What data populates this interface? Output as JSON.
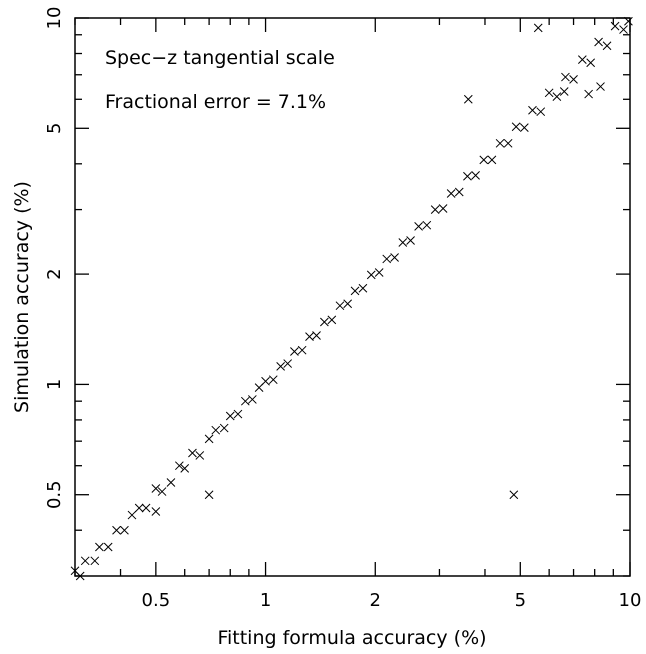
{
  "chart_data": {
    "type": "scatter",
    "xlabel": "Fitting formula accuracy (%)",
    "ylabel": "Simulation accuracy (%)",
    "xscale": "log",
    "yscale": "log",
    "xlim": [
      0.3,
      10
    ],
    "ylim": [
      0.3,
      10
    ],
    "xticks": [
      {
        "value": 0.5,
        "label": "0.5"
      },
      {
        "value": 1,
        "label": "1"
      },
      {
        "value": 2,
        "label": "2"
      },
      {
        "value": 5,
        "label": "5"
      },
      {
        "value": 10,
        "label": "10"
      }
    ],
    "yticks": [
      {
        "value": 0.5,
        "label": "0.5"
      },
      {
        "value": 1,
        "label": "1"
      },
      {
        "value": 2,
        "label": "2"
      },
      {
        "value": 5,
        "label": "5"
      },
      {
        "value": 10,
        "label": "10"
      }
    ],
    "annotations": [
      "Spec−z tangential scale",
      "Fractional error = 7.1%"
    ],
    "marker": "x",
    "marker_color": "#000000",
    "grid": false,
    "trend": {
      "relation": "y ≈ x",
      "fractional_scatter": 0.071
    },
    "points": [
      [
        0.3,
        0.31
      ],
      [
        0.31,
        0.3
      ],
      [
        0.32,
        0.33
      ],
      [
        0.34,
        0.33
      ],
      [
        0.35,
        0.36
      ],
      [
        0.37,
        0.36
      ],
      [
        0.39,
        0.4
      ],
      [
        0.41,
        0.4
      ],
      [
        0.43,
        0.44
      ],
      [
        0.45,
        0.46
      ],
      [
        0.47,
        0.46
      ],
      [
        0.5,
        0.52
      ],
      [
        0.52,
        0.51
      ],
      [
        0.55,
        0.54
      ],
      [
        0.58,
        0.6
      ],
      [
        0.6,
        0.59
      ],
      [
        0.63,
        0.65
      ],
      [
        0.66,
        0.64
      ],
      [
        0.7,
        0.71
      ],
      [
        0.73,
        0.75
      ],
      [
        0.77,
        0.76
      ],
      [
        0.8,
        0.82
      ],
      [
        0.84,
        0.83
      ],
      [
        0.88,
        0.9
      ],
      [
        0.92,
        0.91
      ],
      [
        0.96,
        0.98
      ],
      [
        1.0,
        1.02
      ],
      [
        1.05,
        1.03
      ],
      [
        1.1,
        1.12
      ],
      [
        1.15,
        1.14
      ],
      [
        1.2,
        1.23
      ],
      [
        1.26,
        1.24
      ],
      [
        1.32,
        1.35
      ],
      [
        1.38,
        1.36
      ],
      [
        1.45,
        1.48
      ],
      [
        1.52,
        1.5
      ],
      [
        1.6,
        1.64
      ],
      [
        1.68,
        1.66
      ],
      [
        1.76,
        1.8
      ],
      [
        1.85,
        1.83
      ],
      [
        1.95,
        1.99
      ],
      [
        2.05,
        2.02
      ],
      [
        2.15,
        2.2
      ],
      [
        2.26,
        2.22
      ],
      [
        2.38,
        2.44
      ],
      [
        2.5,
        2.47
      ],
      [
        2.63,
        2.7
      ],
      [
        2.77,
        2.72
      ],
      [
        2.92,
        3.0
      ],
      [
        3.07,
        3.02
      ],
      [
        3.23,
        3.32
      ],
      [
        3.4,
        3.35
      ],
      [
        3.58,
        3.7
      ],
      [
        3.77,
        3.72
      ],
      [
        3.97,
        4.1
      ],
      [
        4.18,
        4.1
      ],
      [
        4.4,
        4.55
      ],
      [
        4.63,
        4.55
      ],
      [
        4.87,
        5.05
      ],
      [
        5.13,
        5.02
      ],
      [
        5.4,
        5.6
      ],
      [
        5.69,
        5.55
      ],
      [
        6.0,
        6.25
      ],
      [
        6.3,
        6.1
      ],
      [
        6.65,
        6.9
      ],
      [
        7.0,
        6.8
      ],
      [
        7.4,
        7.7
      ],
      [
        7.8,
        7.55
      ],
      [
        8.2,
        8.6
      ],
      [
        8.65,
        8.4
      ],
      [
        9.1,
        9.5
      ],
      [
        9.6,
        9.3
      ],
      [
        9.9,
        9.8
      ],
      [
        5.6,
        9.4
      ],
      [
        4.8,
        0.5
      ],
      [
        0.7,
        0.5
      ],
      [
        7.7,
        6.2
      ],
      [
        3.6,
        6.0
      ],
      [
        6.6,
        6.3
      ],
      [
        0.5,
        0.45
      ],
      [
        8.3,
        6.5
      ]
    ]
  }
}
